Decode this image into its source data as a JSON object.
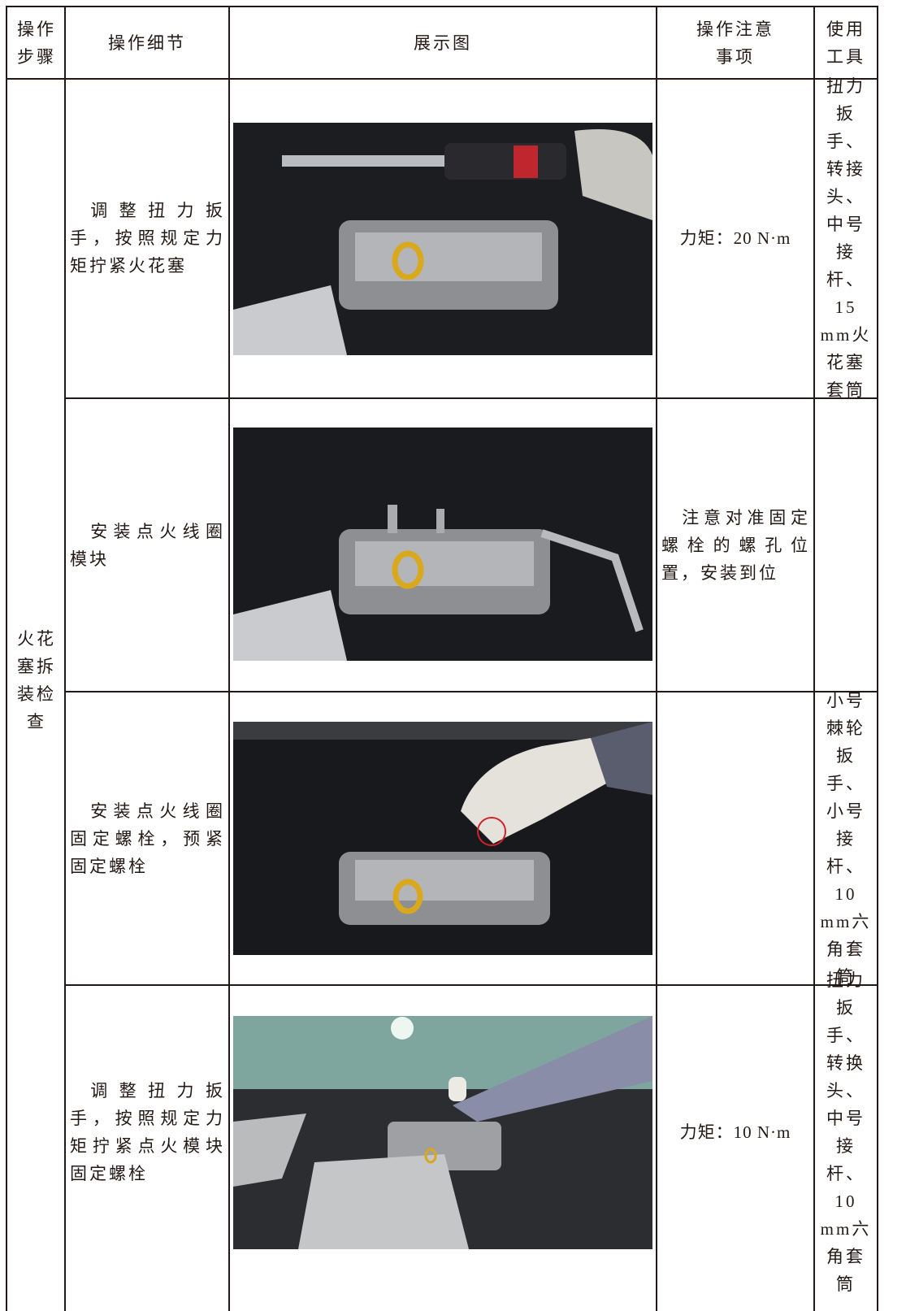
{
  "table": {
    "header": [
      "操作步骤",
      "操作细节",
      "展示图",
      "操作注意事项",
      "使用工具"
    ],
    "step": "火花塞拆装检查",
    "rows": [
      {
        "detail": "调整扭力扳手，按照规定力矩拧紧火花塞",
        "notes": "力矩：20 N·m",
        "tools": "扭力扳手、转接头、中号接杆、15 mm火花塞套筒"
      },
      {
        "detail": "安装点火线圈模块",
        "notes": "注意对准固定螺栓的螺孔位置，安装到位"
      },
      {
        "detail": "安装点火线圈固定螺栓，预紧固定螺栓",
        "tools": "小号棘轮扳手、小号接杆、10 mm六角套筒"
      },
      {
        "detail": "调整扭力扳手，按照规定力矩拧紧点火模块固定螺栓",
        "notes": "力矩：10 N·m",
        "tools": "扭力扳手、转换头、中号接杆、10 mm六角套筒"
      }
    ]
  }
}
